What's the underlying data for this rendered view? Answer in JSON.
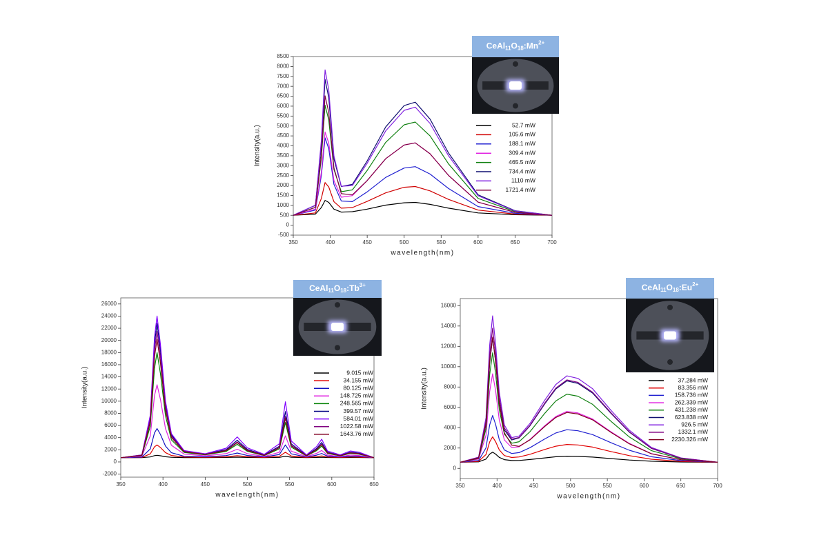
{
  "chart_data": [
    {
      "type": "line",
      "sample_label": [
        "CeAl",
        "11",
        "O",
        "18",
        ":Mn",
        "2+"
      ],
      "x_label": "wavelength(nm)",
      "y_label": "Intensity(a.u.)",
      "xlim": [
        350,
        700
      ],
      "ylim": [
        -500,
        8500
      ],
      "xticks": [
        350,
        400,
        450,
        500,
        550,
        600,
        650,
        700
      ],
      "yticks": [
        -500,
        0,
        500,
        1000,
        1500,
        2000,
        2500,
        3000,
        3500,
        4000,
        4500,
        5000,
        5500,
        6000,
        6500,
        7000,
        7500,
        8000,
        8500
      ],
      "x": [
        350,
        380,
        388,
        393,
        398,
        405,
        415,
        430,
        450,
        475,
        500,
        515,
        535,
        560,
        600,
        650,
        700
      ],
      "series": [
        {
          "name": "52.7 mW",
          "color": "#000000",
          "values": [
            500,
            560,
            890,
            1250,
            1150,
            810,
            660,
            680,
            810,
            1010,
            1130,
            1150,
            1050,
            860,
            620,
            530,
            500
          ]
        },
        {
          "name": "105.6 mW",
          "color": "#d00000",
          "values": [
            500,
            620,
            1350,
            2150,
            1930,
            1190,
            860,
            890,
            1200,
            1630,
            1910,
            1950,
            1730,
            1300,
            760,
            560,
            500
          ]
        },
        {
          "name": "188.1 mW",
          "color": "#1f1fd0",
          "values": [
            500,
            760,
            2500,
            4400,
            3860,
            2060,
            1220,
            1190,
            1680,
            2410,
            2880,
            2950,
            2580,
            1850,
            940,
            600,
            500
          ]
        },
        {
          "name": "309.4 mW",
          "color": "#e020e0",
          "values": [
            500,
            810,
            2670,
            4700,
            4140,
            2260,
            1410,
            1490,
            2250,
            3350,
            4040,
            4150,
            3600,
            2510,
            1160,
            650,
            500
          ]
        },
        {
          "name": "465.5 mW",
          "color": "#108010",
          "values": [
            500,
            900,
            3370,
            6050,
            5310,
            2810,
            1690,
            1780,
            2760,
            4170,
            5060,
            5200,
            4500,
            3090,
            1350,
            690,
            500
          ]
        },
        {
          "name": "734.4 mW",
          "color": "#101070",
          "values": [
            500,
            1000,
            4040,
            7350,
            6430,
            3350,
            1950,
            2060,
            3240,
            4950,
            6030,
            6200,
            5350,
            3640,
            1530,
            730,
            500
          ]
        },
        {
          "name": "1110 mW",
          "color": "#8020e0",
          "values": [
            500,
            1010,
            4270,
            7830,
            6830,
            3500,
            1960,
            2000,
            3120,
            4750,
            5790,
            5950,
            5130,
            3500,
            1480,
            720,
            500
          ]
        },
        {
          "name": "1721.4 mW",
          "color": "#800040",
          "values": [
            500,
            900,
            3580,
            6520,
            5690,
            2900,
            1590,
            1530,
            2250,
            3350,
            4040,
            4150,
            3600,
            2510,
            1160,
            650,
            500
          ]
        }
      ]
    },
    {
      "type": "line",
      "sample_label": [
        "CeAl",
        "11",
        "O",
        "18",
        ":Tb",
        "3+"
      ],
      "x_label": "wavelength(nm)",
      "y_label": "Intensity(a.u.)",
      "xlim": [
        350,
        650
      ],
      "ylim": [
        -2500,
        27000
      ],
      "xticks": [
        350,
        400,
        450,
        500,
        550,
        600,
        650
      ],
      "yticks": [
        -2000,
        0,
        2000,
        4000,
        6000,
        8000,
        10000,
        12000,
        14000,
        16000,
        18000,
        20000,
        22000,
        24000,
        26000
      ],
      "x": [
        350,
        375,
        385,
        390,
        393,
        397,
        403,
        410,
        425,
        450,
        475,
        488,
        500,
        520,
        538,
        545,
        552,
        570,
        582,
        588,
        595,
        610,
        622,
        632,
        650
      ],
      "series": [
        {
          "name": "9.015 mW",
          "color": "#000000",
          "values": [
            700,
            710,
            820,
            1040,
            1100,
            1020,
            860,
            770,
            720,
            710,
            740,
            790,
            740,
            720,
            760,
            950,
            780,
            710,
            750,
            780,
            730,
            710,
            730,
            730,
            700
          ]
        },
        {
          "name": "34.155 mW",
          "color": "#e00000",
          "values": [
            700,
            740,
            1330,
            2490,
            2800,
            2380,
            1540,
            1060,
            810,
            760,
            850,
            1030,
            860,
            750,
            930,
            1600,
            970,
            750,
            880,
            1000,
            810,
            750,
            810,
            790,
            700
          ]
        },
        {
          "name": "80.125 mW",
          "color": "#1010c0",
          "values": [
            700,
            800,
            2140,
            4780,
            5500,
            4540,
            2620,
            1520,
            940,
            840,
            1050,
            1470,
            1060,
            830,
            1230,
            2800,
            1330,
            810,
            1120,
            1390,
            950,
            810,
            950,
            910,
            700
          ]
        },
        {
          "name": "148.725 mW",
          "color": "#e020e0",
          "values": [
            700,
            940,
            4300,
            10900,
            12700,
            10300,
            5500,
            2740,
            1300,
            1010,
            1370,
            2090,
            1360,
            920,
            1600,
            4300,
            1780,
            880,
            1420,
            1890,
            1130,
            880,
            1130,
            1060,
            700
          ]
        },
        {
          "name": "248.565 mW",
          "color": "#008000",
          "values": [
            700,
            1050,
            5890,
            15410,
            18000,
            14540,
            7620,
            3640,
            1570,
            1160,
            1740,
            2900,
            1740,
            1050,
            2150,
            6500,
            2440,
            990,
            1860,
            2610,
            1400,
            990,
            1400,
            1280,
            700
          ]
        },
        {
          "name": "399.57 mW",
          "color": "#000080",
          "values": [
            700,
            1140,
            7330,
            19490,
            22800,
            18380,
            9540,
            4460,
            1810,
            1290,
            2050,
            3570,
            2060,
            1160,
            2600,
            8300,
            2980,
            1080,
            2220,
            3210,
            1610,
            1080,
            1610,
            1460,
            700
          ]
        },
        {
          "name": "584.01 mW",
          "color": "#8000ff",
          "values": [
            700,
            1170,
            7690,
            20510,
            24000,
            19340,
            10020,
            4660,
            1870,
            1350,
            2270,
            4110,
            2310,
            1250,
            3000,
            9900,
            3460,
            1160,
            2540,
            3740,
            1800,
            1160,
            1800,
            1620,
            700
          ]
        },
        {
          "name": "1022.58 mW",
          "color": "#800080",
          "values": [
            700,
            1120,
            6940,
            18380,
            21500,
            17340,
            9020,
            4240,
            1740,
            1250,
            1930,
            3290,
            1930,
            1110,
            2400,
            7500,
            2740,
            1040,
            2060,
            2940,
            1520,
            1040,
            1520,
            1380,
            700
          ]
        },
        {
          "name": "1643.76 mW",
          "color": "#800020",
          "values": [
            700,
            1090,
            6550,
            17280,
            20200,
            16300,
            8500,
            4020,
            1680,
            1220,
            1870,
            3170,
            1870,
            1090,
            2330,
            7200,
            2650,
            1030,
            2000,
            2850,
            1480,
            1030,
            1480,
            1350,
            700
          ]
        }
      ]
    },
    {
      "type": "line",
      "sample_label": [
        "CeAl",
        "11",
        "O",
        "18",
        ":Eu",
        "2+"
      ],
      "x_label": "wavelength(nm)",
      "y_label": "Intensity(a.u.)",
      "xlim": [
        350,
        700
      ],
      "ylim": [
        -1000,
        16700
      ],
      "xticks": [
        350,
        400,
        450,
        500,
        550,
        600,
        650,
        700
      ],
      "yticks": [
        0,
        2000,
        4000,
        6000,
        8000,
        10000,
        12000,
        14000,
        16000
      ],
      "x": [
        350,
        375,
        385,
        390,
        394,
        398,
        403,
        410,
        420,
        430,
        445,
        465,
        480,
        495,
        510,
        530,
        555,
        580,
        610,
        650,
        700
      ],
      "series": [
        {
          "name": "37.284 mW",
          "color": "#000000",
          "values": [
            600,
            640,
            910,
            1400,
            1600,
            1410,
            1080,
            860,
            770,
            780,
            870,
            1030,
            1140,
            1200,
            1180,
            1110,
            960,
            820,
            700,
            630,
            600
          ]
        },
        {
          "name": "83.356 mW",
          "color": "#e00000",
          "values": [
            600,
            690,
            1360,
            2600,
            3100,
            2630,
            1820,
            1260,
            1070,
            1120,
            1390,
            1860,
            2180,
            2350,
            2300,
            2090,
            1650,
            1250,
            900,
            690,
            600
          ]
        },
        {
          "name": "158.736 mW",
          "color": "#1f1fd0",
          "values": [
            600,
            770,
            2010,
            4270,
            5200,
            4340,
            2840,
            1810,
            1460,
            1550,
            2040,
            2900,
            3480,
            3800,
            3700,
            3320,
            2520,
            1780,
            1140,
            760,
            600
          ]
        },
        {
          "name": "262.339 mW",
          "color": "#e020e0",
          "values": [
            600,
            910,
            3250,
            7550,
            9300,
            7650,
            4780,
            2800,
            2050,
            2120,
            2850,
            4200,
            5100,
            5600,
            5450,
            4850,
            3600,
            2450,
            1450,
            850,
            600
          ]
        },
        {
          "name": "431.238 mW",
          "color": "#108010",
          "values": [
            600,
            980,
            3880,
            9200,
            11370,
            9340,
            5790,
            3370,
            2470,
            2620,
            3620,
            5420,
            6630,
            7300,
            7100,
            6300,
            4620,
            3080,
            1740,
            940,
            600
          ]
        },
        {
          "name": "623.838 mW",
          "color": "#101070",
          "values": [
            600,
            1040,
            4330,
            10360,
            12820,
            10520,
            6520,
            3780,
            2790,
            3000,
            4200,
            6360,
            7800,
            8600,
            8360,
            7400,
            5400,
            3560,
            1960,
            1000,
            600
          ]
        },
        {
          "name": "926.5 mW",
          "color": "#8020e0",
          "values": [
            600,
            1110,
            4990,
            12100,
            15000,
            12270,
            7520,
            4260,
            3030,
            3180,
            4430,
            6720,
            8250,
            9100,
            8850,
            7830,
            5700,
            3750,
            2050,
            1030,
            600
          ]
        },
        {
          "name": "1332.1 mW",
          "color": "#800080",
          "values": [
            600,
            1070,
            4630,
            11150,
            13800,
            11310,
            6960,
            3990,
            2880,
            3040,
            4250,
            6430,
            7890,
            8700,
            8460,
            7490,
            5460,
            3600,
            1980,
            1010,
            600
          ]
        },
        {
          "name": "2230.326 mW",
          "color": "#800020",
          "values": [
            600,
            1010,
            4330,
            10430,
            12900,
            10530,
            6390,
            3510,
            2280,
            2170,
            2810,
            4130,
            5010,
            5500,
            5350,
            4770,
            3540,
            2410,
            1430,
            850,
            600
          ]
        }
      ]
    }
  ]
}
